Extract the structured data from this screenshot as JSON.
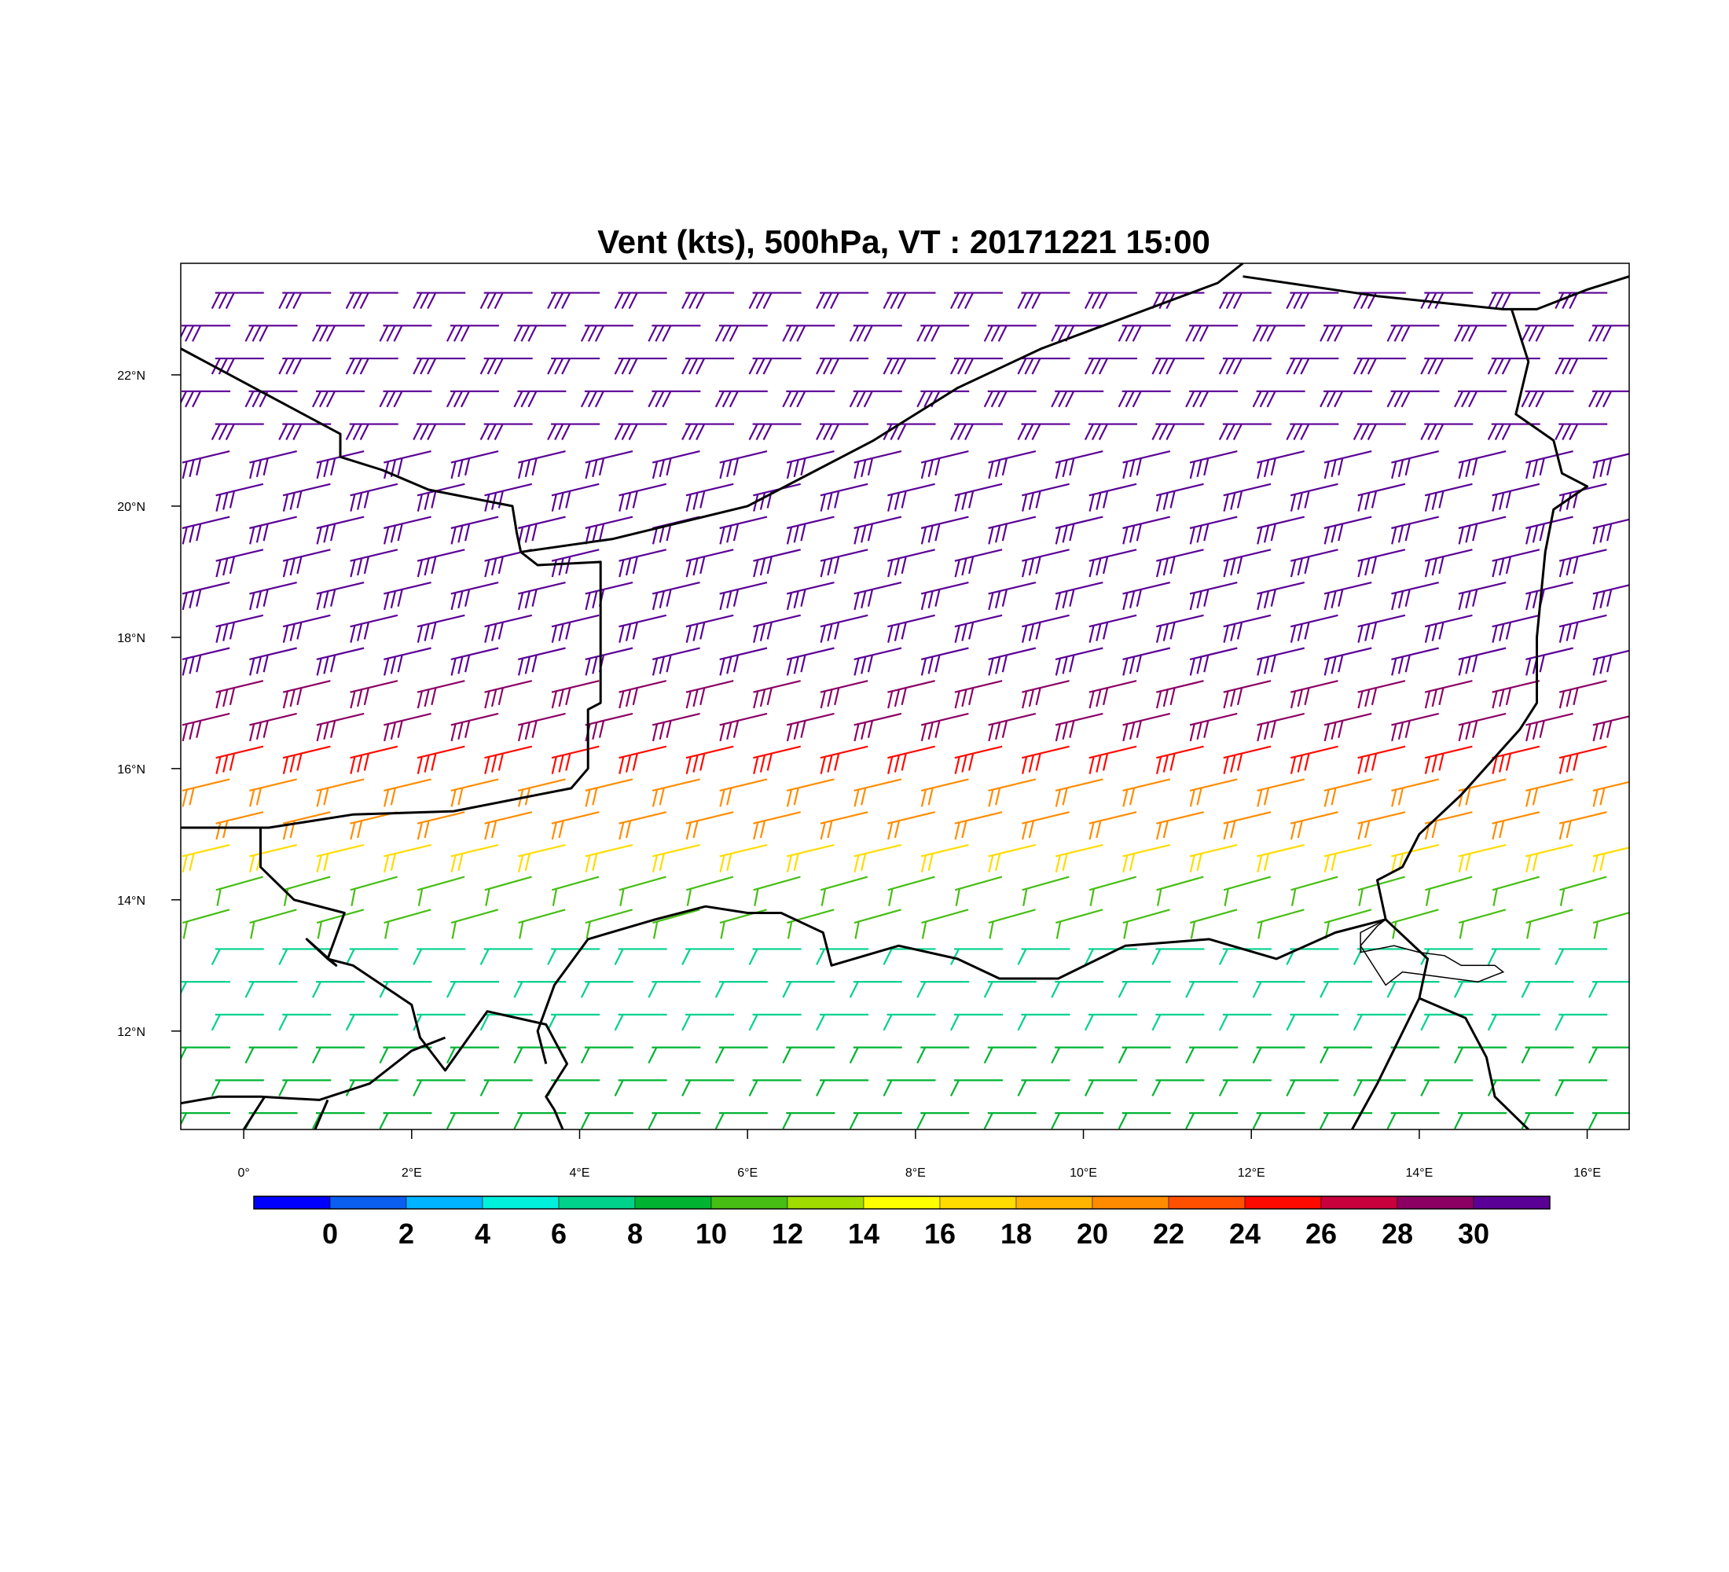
{
  "title": "Vent (kts), 500hPa, VT : 20171221  15:00",
  "map": {
    "lon_range": [
      -0.75,
      16.5
    ],
    "lat_range": [
      10.5,
      23.7
    ],
    "lon_ticks": [
      {
        "value": 0,
        "label": "0°"
      },
      {
        "value": 2,
        "label": "2°E"
      },
      {
        "value": 4,
        "label": "4°E"
      },
      {
        "value": 6,
        "label": "6°E"
      },
      {
        "value": 8,
        "label": "8°E"
      },
      {
        "value": 10,
        "label": "10°E"
      },
      {
        "value": 12,
        "label": "12°E"
      },
      {
        "value": 14,
        "label": "14°E"
      },
      {
        "value": 16,
        "label": "16°E"
      }
    ],
    "lat_ticks": [
      {
        "value": 12,
        "label": "12°N"
      },
      {
        "value": 14,
        "label": "14°N"
      },
      {
        "value": 16,
        "label": "16°N"
      },
      {
        "value": 18,
        "label": "18°N"
      },
      {
        "value": 20,
        "label": "20°N"
      },
      {
        "value": 22,
        "label": "22°N"
      }
    ],
    "borders": [
      [
        [
          -0.75,
          22.4
        ],
        [
          1.15,
          21.1
        ],
        [
          1.15,
          20.75
        ],
        [
          1.65,
          20.55
        ],
        [
          2.2,
          20.25
        ],
        [
          2.6,
          20.15
        ],
        [
          3.2,
          20.0
        ],
        [
          3.25,
          19.6
        ],
        [
          3.3,
          19.3
        ],
        [
          3.5,
          19.1
        ],
        [
          4.25,
          19.15
        ],
        [
          4.25,
          18.0
        ],
        [
          4.25,
          17.0
        ],
        [
          4.1,
          16.9
        ],
        [
          4.1,
          16.0
        ],
        [
          3.9,
          15.7
        ],
        [
          3.5,
          15.6
        ],
        [
          2.5,
          15.35
        ],
        [
          1.3,
          15.3
        ],
        [
          0.3,
          15.1
        ],
        [
          -0.3,
          15.1
        ],
        [
          -0.75,
          15.1
        ]
      ],
      [
        [
          3.3,
          19.3
        ],
        [
          4.4,
          19.5
        ],
        [
          6.0,
          20.0
        ],
        [
          7.5,
          21.0
        ],
        [
          8.5,
          21.8
        ],
        [
          9.5,
          22.4
        ],
        [
          11.6,
          23.4
        ],
        [
          11.9,
          23.7
        ]
      ],
      [
        [
          11.9,
          23.5
        ],
        [
          13.5,
          23.2
        ],
        [
          15.0,
          23.0
        ],
        [
          15.4,
          23.0
        ],
        [
          16.0,
          23.3
        ],
        [
          16.5,
          23.5
        ]
      ],
      [
        [
          15.1,
          23.0
        ],
        [
          15.3,
          22.2
        ],
        [
          15.15,
          21.4
        ],
        [
          15.6,
          21.0
        ],
        [
          15.7,
          20.5
        ],
        [
          16.0,
          20.3
        ],
        [
          15.6,
          19.95
        ],
        [
          15.5,
          19.3
        ],
        [
          15.4,
          18.0
        ],
        [
          15.4,
          17.0
        ],
        [
          15.2,
          16.6
        ],
        [
          14.5,
          15.6
        ],
        [
          14.0,
          15.0
        ],
        [
          13.8,
          14.5
        ],
        [
          13.5,
          14.3
        ],
        [
          13.6,
          13.7
        ]
      ],
      [
        [
          0.2,
          15.1
        ],
        [
          0.2,
          14.5
        ],
        [
          0.6,
          14.0
        ],
        [
          1.2,
          13.8
        ],
        [
          1.0,
          13.1
        ],
        [
          1.1,
          13.0
        ],
        [
          0.75,
          13.4
        ],
        [
          1.0,
          13.1
        ],
        [
          1.3,
          13.0
        ],
        [
          2.0,
          12.4
        ],
        [
          2.1,
          11.9
        ],
        [
          2.4,
          11.4
        ],
        [
          2.9,
          12.3
        ],
        [
          3.6,
          12.1
        ],
        [
          3.85,
          11.5
        ],
        [
          3.6,
          11.0
        ],
        [
          3.7,
          10.8
        ],
        [
          3.8,
          10.5
        ]
      ],
      [
        [
          3.6,
          11.5
        ],
        [
          3.5,
          12.0
        ],
        [
          3.7,
          12.7
        ],
        [
          4.1,
          13.4
        ],
        [
          4.9,
          13.7
        ],
        [
          5.5,
          13.9
        ],
        [
          6.0,
          13.8
        ],
        [
          6.4,
          13.8
        ],
        [
          6.9,
          13.5
        ],
        [
          7.0,
          13.0
        ],
        [
          7.8,
          13.3
        ],
        [
          8.5,
          13.1
        ],
        [
          9.0,
          12.8
        ],
        [
          9.7,
          12.8
        ],
        [
          10.5,
          13.3
        ],
        [
          11.5,
          13.4
        ],
        [
          12.3,
          13.1
        ],
        [
          13.0,
          13.5
        ],
        [
          13.6,
          13.7
        ],
        [
          14.1,
          13.1
        ],
        [
          14.0,
          12.5
        ],
        [
          14.55,
          12.2
        ],
        [
          14.8,
          11.6
        ],
        [
          14.9,
          11.0
        ],
        [
          15.3,
          10.5
        ]
      ],
      [
        [
          -0.75,
          10.9
        ],
        [
          -0.3,
          11.0
        ],
        [
          0.2,
          11.0
        ],
        [
          0.9,
          10.95
        ],
        [
          1.5,
          11.2
        ],
        [
          2.0,
          11.7
        ],
        [
          2.4,
          11.9
        ]
      ],
      [
        [
          1.0,
          10.95
        ],
        [
          0.85,
          10.5
        ]
      ],
      [
        [
          0.25,
          11.0
        ],
        [
          0.0,
          10.5
        ]
      ],
      [
        [
          14.0,
          12.5
        ],
        [
          13.5,
          11.2
        ],
        [
          13.2,
          10.5
        ]
      ]
    ],
    "lake_chad": [
      [
        13.6,
        13.7
      ],
      [
        13.3,
        13.5
      ],
      [
        13.3,
        13.2
      ],
      [
        13.7,
        13.3
      ],
      [
        14.0,
        13.2
      ],
      [
        14.3,
        13.15
      ],
      [
        14.5,
        13.0
      ],
      [
        14.9,
        13.0
      ],
      [
        15.0,
        12.9
      ],
      [
        14.7,
        12.75
      ],
      [
        14.4,
        12.8
      ],
      [
        14.1,
        12.85
      ],
      [
        13.8,
        12.9
      ],
      [
        13.6,
        12.7
      ],
      [
        13.5,
        12.9
      ],
      [
        13.4,
        13.1
      ],
      [
        13.3,
        13.3
      ],
      [
        13.5,
        13.6
      ],
      [
        13.6,
        13.7
      ]
    ]
  },
  "wind": {
    "flow_regions": [
      {
        "lat_min": 21.0,
        "lat_max": 23.7,
        "dir_lat_per_lon": 0.0,
        "speed": 31,
        "note": ""
      },
      {
        "lat_min": 17.5,
        "lat_max": 21.0,
        "dir_lat_per_lon": 0.3,
        "speed": 31,
        "note": ""
      },
      {
        "lat_min": 16.5,
        "lat_max": 17.5,
        "dir_lat_per_lon": 0.3,
        "speed": 28,
        "note": ""
      },
      {
        "lat_min": 15.8,
        "lat_max": 16.5,
        "dir_lat_per_lon": 0.3,
        "speed": 25,
        "note": ""
      },
      {
        "lat_min": 15.1,
        "lat_max": 15.8,
        "dir_lat_per_lon": 0.3,
        "speed": 21,
        "note": ""
      },
      {
        "lat_min": 14.3,
        "lat_max": 15.1,
        "dir_lat_per_lon": 0.3,
        "speed": 16,
        "note": ""
      },
      {
        "lat_min": 13.3,
        "lat_max": 14.3,
        "dir_lat_per_lon": 0.35,
        "speed": 11,
        "note": ""
      },
      {
        "lat_min": 11.8,
        "lat_max": 13.3,
        "dir_lat_per_lon": 0.0,
        "speed": 6,
        "note": ""
      },
      {
        "lat_min": 10.5,
        "lat_max": 11.8,
        "dir_lat_per_lon": 0.0,
        "speed": 9,
        "note": ""
      }
    ]
  },
  "colorbar": {
    "colors": [
      "#0000ff",
      "#0a5ef0",
      "#00b4ff",
      "#00f0dc",
      "#00d28c",
      "#00b432",
      "#46be14",
      "#a0dc00",
      "#ffff00",
      "#ffdc00",
      "#ffb400",
      "#ff8c00",
      "#ff5000",
      "#ff0a00",
      "#c8003c",
      "#8c0064",
      "#5a0096"
    ],
    "labels": [
      "0",
      "2",
      "4",
      "6",
      "8",
      "10",
      "12",
      "14",
      "16",
      "18",
      "20",
      "22",
      "24",
      "26",
      "28",
      "30"
    ]
  }
}
